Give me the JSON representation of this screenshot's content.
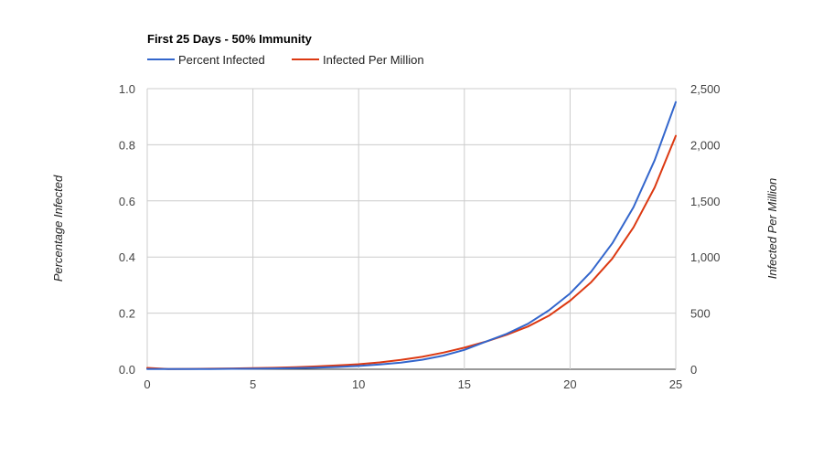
{
  "chart_data": {
    "type": "line",
    "title": "First 25 Days - 50% Immunity",
    "legend_position": "top-left",
    "grid": true,
    "x": [
      0,
      1,
      2,
      3,
      4,
      5,
      6,
      7,
      8,
      9,
      10,
      11,
      12,
      13,
      14,
      15,
      16,
      17,
      18,
      19,
      20,
      21,
      22,
      23,
      24,
      25
    ],
    "xlim": [
      0,
      25
    ],
    "x_ticks": [
      "0",
      "5",
      "10",
      "15",
      "20",
      "25"
    ],
    "y_left": {
      "label": "Percentage Infected",
      "lim": [
        0,
        1.0
      ],
      "ticks": [
        "0.0",
        "0.2",
        "0.4",
        "0.6",
        "0.8",
        "1.0"
      ]
    },
    "y_right": {
      "label": "Infected Per Million",
      "lim": [
        0,
        2500
      ],
      "ticks": [
        "0",
        "500",
        "1,000",
        "1,500",
        "2,000",
        "2,500"
      ]
    },
    "series": [
      {
        "name": "Percent Infected",
        "color": "#3366cc",
        "axis": "left",
        "values": [
          0.0005,
          0.0006,
          0.0008,
          0.0011,
          0.0015,
          0.002,
          0.0029,
          0.0041,
          0.0058,
          0.0083,
          0.0118,
          0.0168,
          0.0239,
          0.034,
          0.0484,
          0.0689,
          0.098,
          0.126,
          0.162,
          0.21,
          0.27,
          0.348,
          0.449,
          0.578,
          0.745,
          0.952
        ]
      },
      {
        "name": "Infected Per Million",
        "color": "#dc3912",
        "axis": "right",
        "values": [
          12,
          2,
          3,
          5,
          7,
          10,
          13,
          18,
          25,
          34,
          45,
          61,
          83,
          111,
          148,
          192,
          245,
          307,
          380,
          477,
          611,
          776,
          986,
          1265,
          1620,
          2080
        ]
      }
    ]
  }
}
